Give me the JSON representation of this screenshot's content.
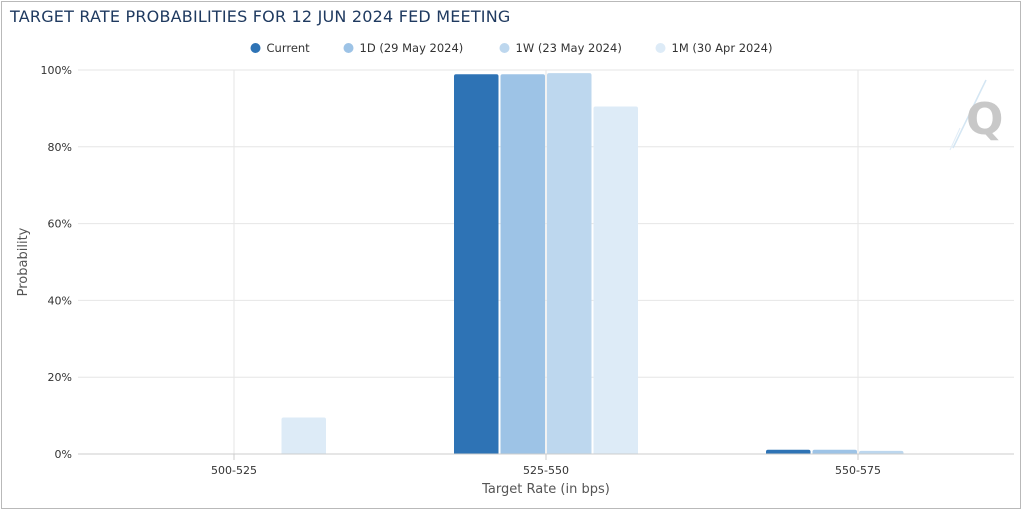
{
  "chart_data": {
    "type": "bar",
    "title": "TARGET RATE PROBABILITIES FOR 12 JUN 2024 FED MEETING",
    "xlabel": "Target Rate (in bps)",
    "ylabel": "Probability",
    "categories": [
      "500-525",
      "525-550",
      "550-575"
    ],
    "ylim": [
      0,
      100
    ],
    "yticks": [
      0,
      20,
      40,
      60,
      80,
      100
    ],
    "ytick_labels": [
      "0%",
      "20%",
      "40%",
      "60%",
      "80%",
      "100%"
    ],
    "grid": true,
    "legend_position": "top-center",
    "series": [
      {
        "name": "Current",
        "color": "#2e73b5",
        "values": [
          0,
          98.9,
          1.1
        ]
      },
      {
        "name": "1D (29 May 2024)",
        "color": "#9dc3e6",
        "values": [
          0,
          98.9,
          1.1
        ]
      },
      {
        "name": "1W (23 May 2024)",
        "color": "#bdd7ee",
        "values": [
          0,
          99.2,
          0.8
        ]
      },
      {
        "name": "1M (30 Apr 2024)",
        "color": "#ddebf7",
        "values": [
          9.5,
          90.5,
          0
        ]
      }
    ]
  }
}
